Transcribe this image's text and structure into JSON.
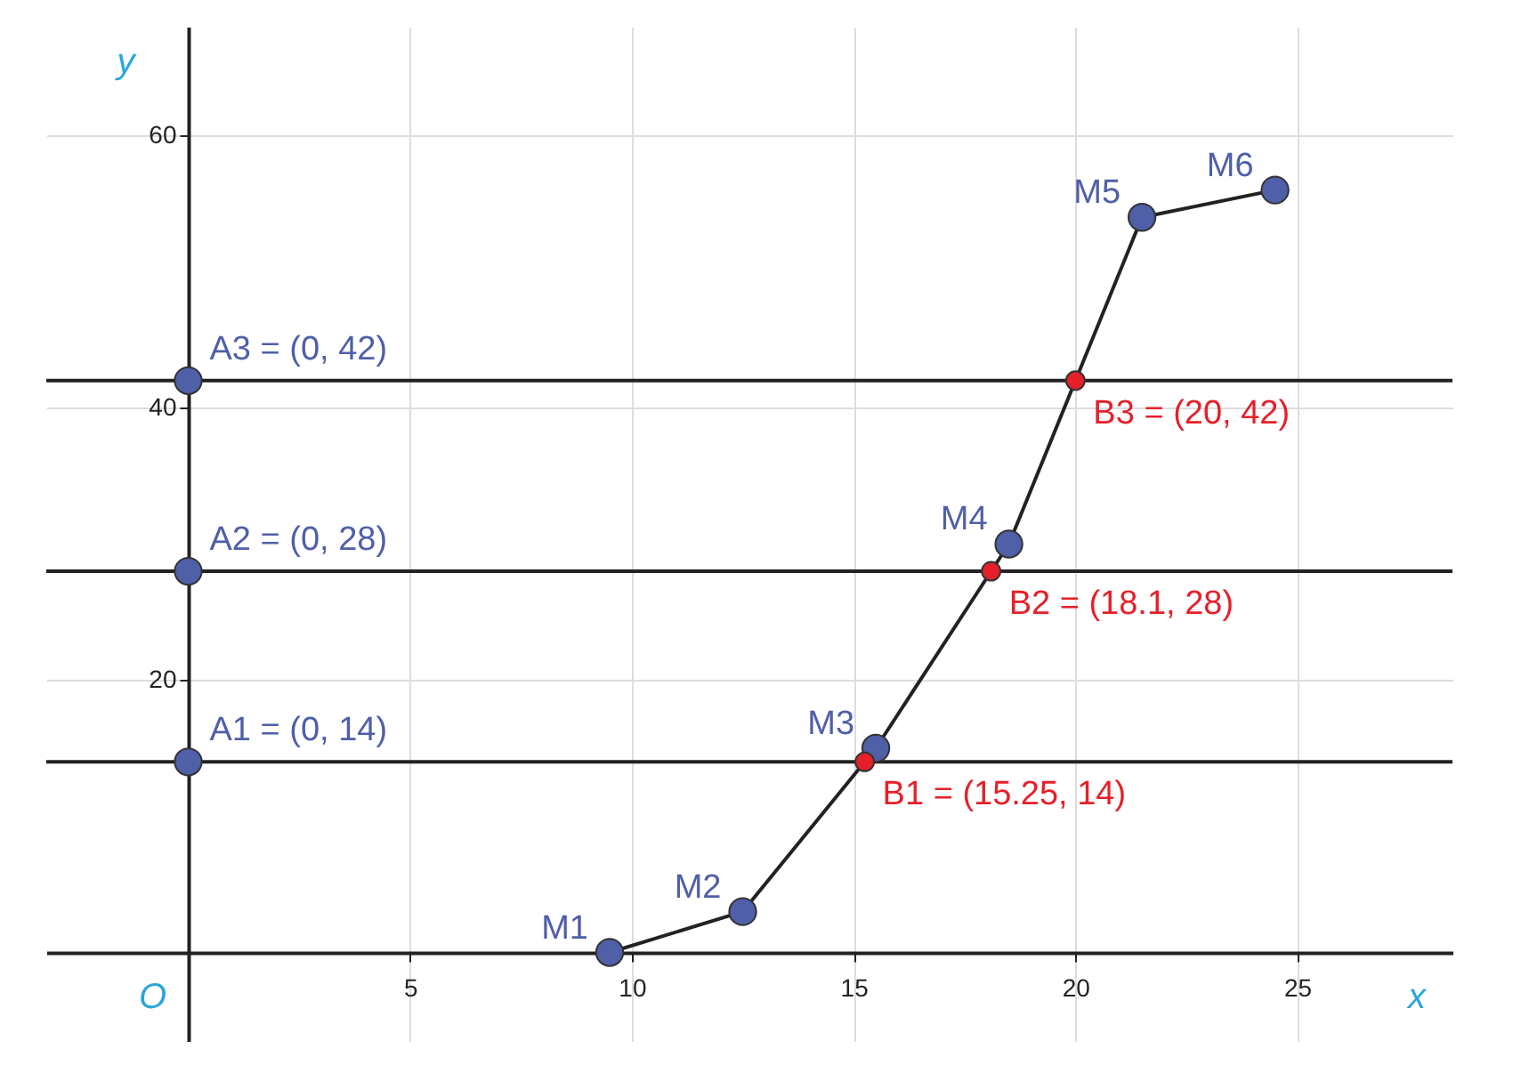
{
  "chart_data": {
    "type": "line",
    "xlabel": "x",
    "ylabel": "y",
    "xlim": [
      -3.2,
      28.5
    ],
    "ylim": [
      -6.5,
      68
    ],
    "xticks": [
      5,
      10,
      15,
      20,
      25
    ],
    "yticks": [
      20,
      40,
      60
    ],
    "grid": true,
    "series": [
      {
        "color": "#4f5fa8",
        "marker": "circle",
        "line_style": "solid",
        "x": [
          9.5,
          12.5,
          15.5,
          18.5,
          21.5,
          24.5
        ],
        "values": [
          0,
          3,
          15,
          30,
          54,
          56
        ]
      },
      {
        "type": "scatter",
        "color": "#4f5fa8",
        "marker": "circle",
        "x": [
          0,
          0,
          0
        ],
        "values": [
          14,
          28,
          42
        ]
      },
      {
        "type": "scatter",
        "color": "#e5202a",
        "marker": "circle",
        "x": [
          15.25,
          18.1,
          20
        ],
        "values": [
          14,
          28,
          42
        ]
      }
    ],
    "ref_lines": [
      {
        "axis": "y",
        "value": 14,
        "color": "#222222"
      },
      {
        "axis": "y",
        "value": 28,
        "color": "#222222"
      },
      {
        "axis": "y",
        "value": 42,
        "color": "#222222"
      }
    ],
    "annotations": [
      "O",
      {
        "text": "M1",
        "x": 9.5,
        "y": 0
      },
      {
        "text": "M2",
        "x": 12.5,
        "y": 3
      },
      {
        "text": "M3",
        "x": 15.5,
        "y": 15
      },
      {
        "text": "M4",
        "x": 18.5,
        "y": 30
      },
      {
        "text": "M5",
        "x": 21.5,
        "y": 54
      },
      {
        "text": "M6",
        "x": 24.5,
        "y": 56
      },
      {
        "text": "A1 = (0, 14)",
        "x": 0,
        "y": 14
      },
      {
        "text": "A2 = (0, 28)",
        "x": 0,
        "y": 28
      },
      {
        "text": "A3 = (0, 42)",
        "x": 0,
        "y": 42
      },
      {
        "text": "B1 = (15.25, 14)",
        "x": 15.25,
        "y": 14
      },
      {
        "text": "B2 = (18.1, 28)",
        "x": 18.1,
        "y": 28
      },
      {
        "text": "B3 = (20, 42)",
        "x": 20,
        "y": 42
      }
    ]
  }
}
